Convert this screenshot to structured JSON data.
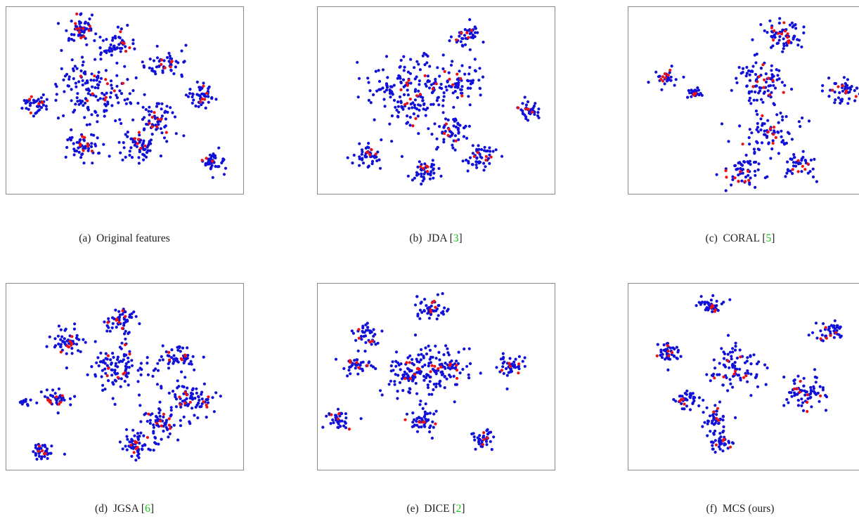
{
  "colors": {
    "source": "#1010d8",
    "target": "#ee1111",
    "frame": "#8a8a8a",
    "citation": "#19c419"
  },
  "chart_data": [
    {
      "type": "scatter",
      "caption": {
        "label": "(a)",
        "title": "Original features",
        "citation": ""
      },
      "clusters": [
        {
          "x": 0.3,
          "y": 0.12,
          "spread": 0.04,
          "blue": 55,
          "red": 10
        },
        {
          "x": 0.46,
          "y": 0.21,
          "spread": 0.05,
          "blue": 50,
          "red": 5
        },
        {
          "x": 0.66,
          "y": 0.3,
          "spread": 0.04,
          "blue": 45,
          "red": 6
        },
        {
          "x": 0.82,
          "y": 0.48,
          "spread": 0.035,
          "blue": 45,
          "red": 5
        },
        {
          "x": 0.13,
          "y": 0.52,
          "spread": 0.03,
          "blue": 35,
          "red": 6
        },
        {
          "x": 0.38,
          "y": 0.45,
          "spread": 0.09,
          "blue": 130,
          "red": 10
        },
        {
          "x": 0.63,
          "y": 0.6,
          "spread": 0.05,
          "blue": 55,
          "red": 8
        },
        {
          "x": 0.33,
          "y": 0.74,
          "spread": 0.04,
          "blue": 50,
          "red": 8
        },
        {
          "x": 0.55,
          "y": 0.75,
          "spread": 0.04,
          "blue": 55,
          "red": 6
        },
        {
          "x": 0.87,
          "y": 0.83,
          "spread": 0.025,
          "blue": 40,
          "red": 3
        }
      ]
    },
    {
      "type": "scatter",
      "caption": {
        "label": "(b)",
        "title": "JDA",
        "citation": "3"
      },
      "clusters": [
        {
          "x": 0.62,
          "y": 0.15,
          "spread": 0.03,
          "blue": 35,
          "red": 5
        },
        {
          "x": 0.4,
          "y": 0.45,
          "spread": 0.1,
          "blue": 180,
          "red": 15
        },
        {
          "x": 0.6,
          "y": 0.4,
          "spread": 0.05,
          "blue": 50,
          "red": 5
        },
        {
          "x": 0.89,
          "y": 0.55,
          "spread": 0.025,
          "blue": 35,
          "red": 4
        },
        {
          "x": 0.22,
          "y": 0.8,
          "spread": 0.035,
          "blue": 40,
          "red": 5
        },
        {
          "x": 0.56,
          "y": 0.67,
          "spread": 0.035,
          "blue": 45,
          "red": 5
        },
        {
          "x": 0.69,
          "y": 0.8,
          "spread": 0.035,
          "blue": 45,
          "red": 5
        },
        {
          "x": 0.46,
          "y": 0.88,
          "spread": 0.03,
          "blue": 40,
          "red": 5
        }
      ]
    },
    {
      "type": "scatter",
      "caption": {
        "label": "(c)",
        "title": "CORAL",
        "citation": "5"
      },
      "clusters": [
        {
          "x": 0.16,
          "y": 0.37,
          "spread": 0.025,
          "blue": 25,
          "red": 8
        },
        {
          "x": 0.28,
          "y": 0.46,
          "spread": 0.015,
          "blue": 35,
          "red": 3
        },
        {
          "x": 0.65,
          "y": 0.15,
          "spread": 0.045,
          "blue": 60,
          "red": 12
        },
        {
          "x": 0.56,
          "y": 0.4,
          "spread": 0.06,
          "blue": 80,
          "red": 10
        },
        {
          "x": 0.9,
          "y": 0.45,
          "spread": 0.04,
          "blue": 45,
          "red": 6
        },
        {
          "x": 0.58,
          "y": 0.68,
          "spread": 0.06,
          "blue": 70,
          "red": 8
        },
        {
          "x": 0.48,
          "y": 0.9,
          "spread": 0.04,
          "blue": 45,
          "red": 8
        },
        {
          "x": 0.72,
          "y": 0.84,
          "spread": 0.035,
          "blue": 35,
          "red": 6
        }
      ]
    },
    {
      "type": "scatter",
      "caption": {
        "label": "(d)",
        "title": "JGSA",
        "citation": "6"
      },
      "clusters": [
        {
          "x": 0.48,
          "y": 0.2,
          "spread": 0.035,
          "blue": 50,
          "red": 8
        },
        {
          "x": 0.26,
          "y": 0.32,
          "spread": 0.035,
          "blue": 45,
          "red": 7
        },
        {
          "x": 0.48,
          "y": 0.45,
          "spread": 0.07,
          "blue": 100,
          "red": 8
        },
        {
          "x": 0.72,
          "y": 0.4,
          "spread": 0.035,
          "blue": 45,
          "red": 6
        },
        {
          "x": 0.21,
          "y": 0.62,
          "spread": 0.03,
          "blue": 40,
          "red": 8
        },
        {
          "x": 0.78,
          "y": 0.62,
          "spread": 0.05,
          "blue": 70,
          "red": 10
        },
        {
          "x": 0.65,
          "y": 0.75,
          "spread": 0.05,
          "blue": 60,
          "red": 8
        },
        {
          "x": 0.55,
          "y": 0.87,
          "spread": 0.035,
          "blue": 50,
          "red": 8
        },
        {
          "x": 0.16,
          "y": 0.9,
          "spread": 0.025,
          "blue": 35,
          "red": 5
        },
        {
          "x": 0.08,
          "y": 0.63,
          "spread": 0.012,
          "blue": 12,
          "red": 0
        }
      ]
    },
    {
      "type": "scatter",
      "caption": {
        "label": "(e)",
        "title": "DICE",
        "citation": "2"
      },
      "clusters": [
        {
          "x": 0.48,
          "y": 0.13,
          "spread": 0.03,
          "blue": 45,
          "red": 5
        },
        {
          "x": 0.2,
          "y": 0.28,
          "spread": 0.03,
          "blue": 35,
          "red": 4
        },
        {
          "x": 0.17,
          "y": 0.44,
          "spread": 0.03,
          "blue": 35,
          "red": 5
        },
        {
          "x": 0.4,
          "y": 0.48,
          "spread": 0.07,
          "blue": 110,
          "red": 10
        },
        {
          "x": 0.54,
          "y": 0.45,
          "spread": 0.05,
          "blue": 60,
          "red": 7
        },
        {
          "x": 0.81,
          "y": 0.45,
          "spread": 0.03,
          "blue": 40,
          "red": 5
        },
        {
          "x": 0.08,
          "y": 0.73,
          "spread": 0.03,
          "blue": 35,
          "red": 4
        },
        {
          "x": 0.44,
          "y": 0.73,
          "spread": 0.035,
          "blue": 45,
          "red": 5
        },
        {
          "x": 0.7,
          "y": 0.84,
          "spread": 0.025,
          "blue": 35,
          "red": 4
        }
      ]
    },
    {
      "type": "scatter",
      "caption": {
        "label": "(f)",
        "title": "MCS (ours)",
        "citation": ""
      },
      "clusters": [
        {
          "x": 0.35,
          "y": 0.12,
          "spread": 0.025,
          "blue": 35,
          "red": 5
        },
        {
          "x": 0.85,
          "y": 0.26,
          "spread": 0.03,
          "blue": 40,
          "red": 5
        },
        {
          "x": 0.17,
          "y": 0.37,
          "spread": 0.03,
          "blue": 40,
          "red": 5
        },
        {
          "x": 0.45,
          "y": 0.45,
          "spread": 0.06,
          "blue": 80,
          "red": 8
        },
        {
          "x": 0.24,
          "y": 0.62,
          "spread": 0.03,
          "blue": 35,
          "red": 4
        },
        {
          "x": 0.37,
          "y": 0.72,
          "spread": 0.03,
          "blue": 35,
          "red": 4
        },
        {
          "x": 0.74,
          "y": 0.6,
          "spread": 0.05,
          "blue": 65,
          "red": 8
        },
        {
          "x": 0.38,
          "y": 0.85,
          "spread": 0.03,
          "blue": 40,
          "red": 4
        }
      ]
    }
  ]
}
